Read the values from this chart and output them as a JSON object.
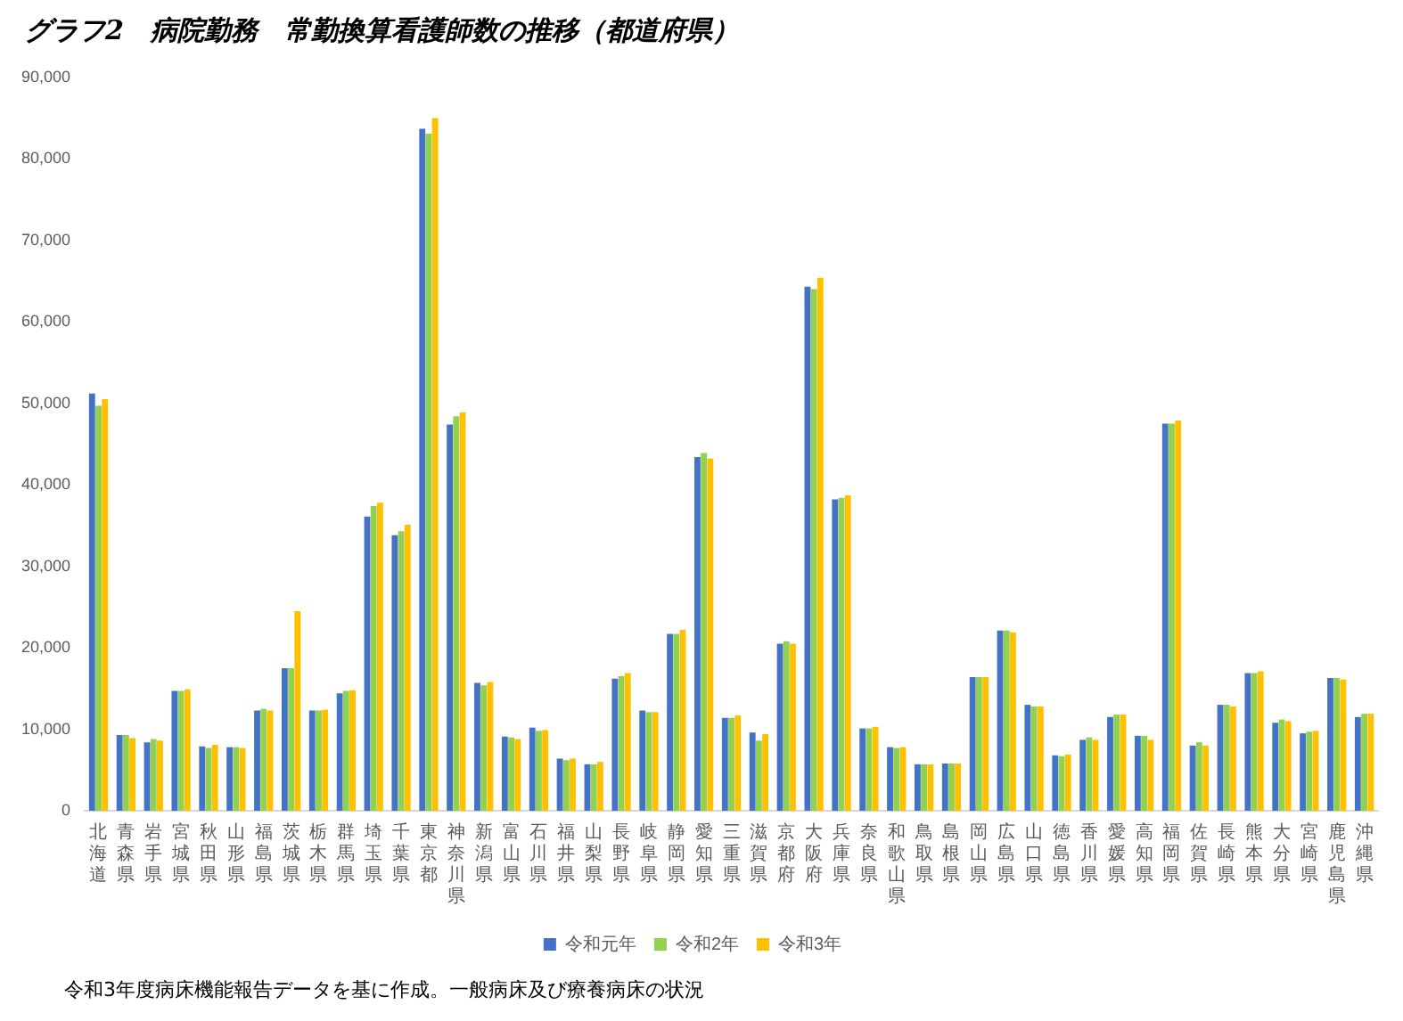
{
  "chart_data": {
    "type": "bar",
    "title": "グラフ2　病院勤務　常勤換算看護師数の推移（都道府県）",
    "categories": [
      "北海道",
      "青森県",
      "岩手県",
      "宮城県",
      "秋田県",
      "山形県",
      "福島県",
      "茨城県",
      "栃木県",
      "群馬県",
      "埼玉県",
      "千葉県",
      "東京都",
      "神奈川県",
      "新潟県",
      "富山県",
      "石川県",
      "福井県",
      "山梨県",
      "長野県",
      "岐阜県",
      "静岡県",
      "愛知県",
      "三重県",
      "滋賀県",
      "京都府",
      "大阪府",
      "兵庫県",
      "奈良県",
      "和歌山県",
      "鳥取県",
      "島根県",
      "岡山県",
      "広島県",
      "山口県",
      "徳島県",
      "香川県",
      "愛媛県",
      "高知県",
      "福岡県",
      "佐賀県",
      "長崎県",
      "熊本県",
      "大分県",
      "宮崎県",
      "鹿児島県",
      "沖縄県"
    ],
    "series": [
      {
        "name": "令和元年",
        "color": "#4472c4",
        "values": [
          51200,
          9300,
          8400,
          14700,
          7900,
          7800,
          12300,
          17500,
          12300,
          14400,
          36100,
          33800,
          83700,
          47400,
          15700,
          9100,
          10200,
          6400,
          5700,
          16200,
          12300,
          21700,
          43400,
          11400,
          9600,
          20500,
          64300,
          38200,
          10100,
          7800,
          5700,
          5800,
          16400,
          22100,
          13000,
          6800,
          8700,
          11500,
          9200,
          47500,
          8000,
          13000,
          16900,
          10800,
          9500,
          16300,
          11500
        ]
      },
      {
        "name": "令和2年",
        "color": "#92d050",
        "values": [
          49700,
          9300,
          8800,
          14700,
          7700,
          7800,
          12500,
          17500,
          12300,
          14700,
          37400,
          34300,
          83100,
          48400,
          15400,
          9000,
          9800,
          6200,
          5700,
          16500,
          12100,
          21700,
          43900,
          11400,
          8600,
          20800,
          64000,
          38400,
          10100,
          7700,
          5700,
          5800,
          16400,
          22100,
          12800,
          6700,
          9000,
          11800,
          9200,
          47500,
          8400,
          13000,
          16900,
          11200,
          9700,
          16300,
          11900
        ]
      },
      {
        "name": "令和3年",
        "color": "#ffc000",
        "values": [
          50500,
          8900,
          8600,
          14900,
          8100,
          7700,
          12300,
          24500,
          12400,
          14800,
          37800,
          35100,
          85000,
          48900,
          15800,
          8800,
          9900,
          6400,
          6000,
          16900,
          12100,
          22200,
          43200,
          11700,
          9400,
          20500,
          65400,
          38700,
          10300,
          7800,
          5700,
          5800,
          16400,
          21900,
          12800,
          6900,
          8700,
          11800,
          8700,
          47900,
          8000,
          12800,
          17100,
          11000,
          9800,
          16100,
          11900
        ]
      }
    ],
    "ylim": [
      0,
      90000
    ],
    "yticks": [
      {
        "value": 0,
        "label": "0"
      },
      {
        "value": 10000,
        "label": "10,000"
      },
      {
        "value": 20000,
        "label": "20,000"
      },
      {
        "value": 30000,
        "label": "30,000"
      },
      {
        "value": 40000,
        "label": "40,000"
      },
      {
        "value": 50000,
        "label": "50,000"
      },
      {
        "value": 60000,
        "label": "60,000"
      },
      {
        "value": 70000,
        "label": "70,000"
      },
      {
        "value": 80000,
        "label": "80,000"
      },
      {
        "value": 90000,
        "label": "90,000"
      }
    ],
    "legend": "bottom",
    "annotations": [
      "令和3年度病床機能報告データを基に作成。一般病床及び療養病床の状況"
    ]
  }
}
